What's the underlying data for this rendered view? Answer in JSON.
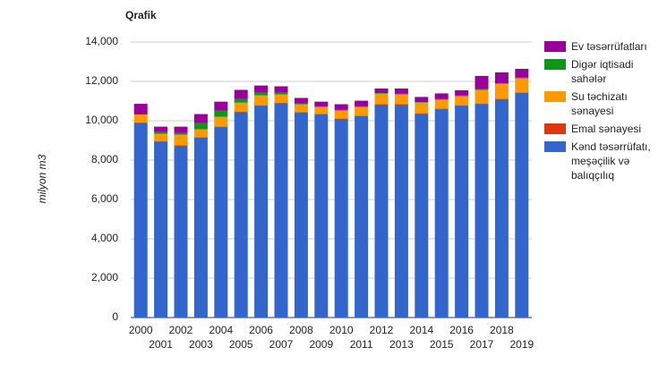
{
  "chart_data": {
    "type": "stacked_bar",
    "title": "Qrafik",
    "y_label": "milyon m3",
    "categories": [
      "2000",
      "2001",
      "2002",
      "2003",
      "2004",
      "2005",
      "2006",
      "2007",
      "2008",
      "2009",
      "2010",
      "2011",
      "2012",
      "2013",
      "2014",
      "2015",
      "2016",
      "2017",
      "2018",
      "2019"
    ],
    "series": [
      {
        "name": "Kənd təsərrüfatı, meşəçilik və balıqçılıq",
        "color": "#3366cc",
        "values": [
          9900,
          8950,
          8730,
          9140,
          9680,
          10450,
          10770,
          10900,
          10410,
          10320,
          10090,
          10230,
          10820,
          10820,
          10360,
          10590,
          10770,
          10860,
          11090,
          11410
        ]
      },
      {
        "name": "Emal sənayesi",
        "color": "#dc3912",
        "values": [
          20,
          20,
          20,
          20,
          20,
          20,
          20,
          20,
          20,
          20,
          20,
          20,
          20,
          20,
          20,
          20,
          20,
          20,
          20,
          20
        ]
      },
      {
        "name": "Su təchizatı sənayesi",
        "color": "#ff9900",
        "values": [
          400,
          370,
          540,
          410,
          500,
          450,
          500,
          420,
          410,
          360,
          410,
          450,
          540,
          500,
          540,
          460,
          460,
          690,
          770,
          730
        ]
      },
      {
        "name": "Digər iqtisadi sahələr",
        "color": "#109618",
        "values": [
          0,
          80,
          90,
          310,
          320,
          190,
          130,
          80,
          30,
          30,
          30,
          30,
          30,
          30,
          30,
          30,
          30,
          30,
          30,
          30
        ]
      },
      {
        "name": "Ev təsərrüfatları",
        "color": "#990099",
        "values": [
          540,
          280,
          320,
          460,
          450,
          460,
          370,
          330,
          290,
          240,
          290,
          290,
          230,
          270,
          260,
          290,
          270,
          680,
          550,
          450
        ]
      }
    ],
    "ylim": [
      0,
      14000
    ],
    "yticks": [
      0,
      {
        "value": 2000,
        "label": "2,000"
      },
      {
        "value": 4000,
        "label": "4,000"
      },
      {
        "value": 6000,
        "label": "6,000"
      },
      {
        "value": 8000,
        "label": "8,000"
      },
      {
        "value": 10000,
        "label": "10,000"
      },
      {
        "value": 12000,
        "label": "12,000"
      },
      {
        "value": 14000,
        "label": "14,000"
      }
    ],
    "grid": true
  }
}
